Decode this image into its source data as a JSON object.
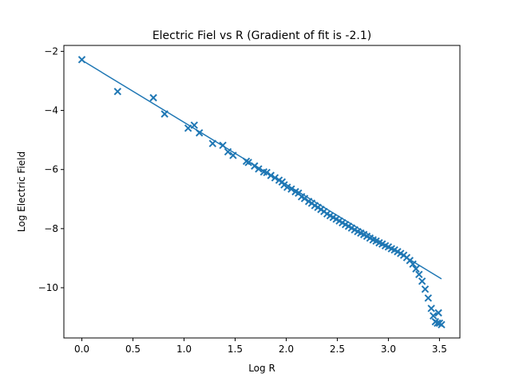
{
  "chart_data": {
    "type": "scatter",
    "title": "Electric Fiel vs R (Gradient of fit is -2.1)",
    "xlabel": "Log R",
    "ylabel": "Log Electric Field",
    "xlim": [
      -0.176,
      3.7
    ],
    "ylim": [
      -11.7,
      -1.8
    ],
    "xticks": [
      0.0,
      0.5,
      1.0,
      1.5,
      2.0,
      2.5,
      3.0,
      3.5
    ],
    "xtick_labels": [
      "0.0",
      "0.5",
      "1.0",
      "1.5",
      "2.0",
      "2.5",
      "3.0",
      "3.5"
    ],
    "yticks": [
      -10,
      -8,
      -6,
      -4,
      -2
    ],
    "ytick_labels": [
      "−10",
      "−8",
      "−6",
      "−4",
      "−2"
    ],
    "grid": false,
    "color": "#1f77b4",
    "fit_line": {
      "x": [
        0.0,
        3.52
      ],
      "y": [
        -2.3,
        -9.7
      ]
    },
    "series": [
      {
        "marker": "x",
        "x": [
          0.0,
          0.35,
          0.7,
          0.81,
          1.04,
          1.1,
          1.15,
          1.28,
          1.38,
          1.43,
          1.48,
          1.61,
          1.63,
          1.69,
          1.73,
          1.78,
          1.81,
          1.85,
          1.89,
          1.93,
          1.96,
          1.98,
          2.01,
          2.05,
          2.09,
          2.12,
          2.15,
          2.18,
          2.22,
          2.25,
          2.28,
          2.31,
          2.34,
          2.37,
          2.4,
          2.43,
          2.46,
          2.49,
          2.52,
          2.55,
          2.58,
          2.61,
          2.64,
          2.67,
          2.7,
          2.73,
          2.76,
          2.79,
          2.82,
          2.85,
          2.88,
          2.91,
          2.94,
          2.97,
          3.0,
          3.03,
          3.06,
          3.09,
          3.12,
          3.15,
          3.18,
          3.21,
          3.24,
          3.27,
          3.3,
          3.33,
          3.36,
          3.39,
          3.42,
          3.44,
          3.46,
          3.48,
          3.49,
          3.5,
          3.52
        ],
        "y": [
          -2.28,
          -3.36,
          -3.57,
          -4.12,
          -4.6,
          -4.5,
          -4.76,
          -5.12,
          -5.18,
          -5.4,
          -5.52,
          -5.72,
          -5.76,
          -5.88,
          -5.98,
          -6.08,
          -6.1,
          -6.2,
          -6.28,
          -6.36,
          -6.42,
          -6.52,
          -6.6,
          -6.66,
          -6.75,
          -6.8,
          -6.92,
          -6.98,
          -7.08,
          -7.14,
          -7.22,
          -7.28,
          -7.35,
          -7.42,
          -7.5,
          -7.56,
          -7.62,
          -7.68,
          -7.74,
          -7.8,
          -7.86,
          -7.92,
          -7.98,
          -8.04,
          -8.1,
          -8.15,
          -8.2,
          -8.26,
          -8.32,
          -8.38,
          -8.42,
          -8.48,
          -8.52,
          -8.58,
          -8.62,
          -8.68,
          -8.72,
          -8.78,
          -8.84,
          -8.9,
          -8.98,
          -9.08,
          -9.2,
          -9.36,
          -9.55,
          -9.78,
          -10.05,
          -10.35,
          -10.7,
          -10.95,
          -11.15,
          -11.2,
          -10.85,
          -11.2,
          -11.25
        ]
      }
    ]
  }
}
